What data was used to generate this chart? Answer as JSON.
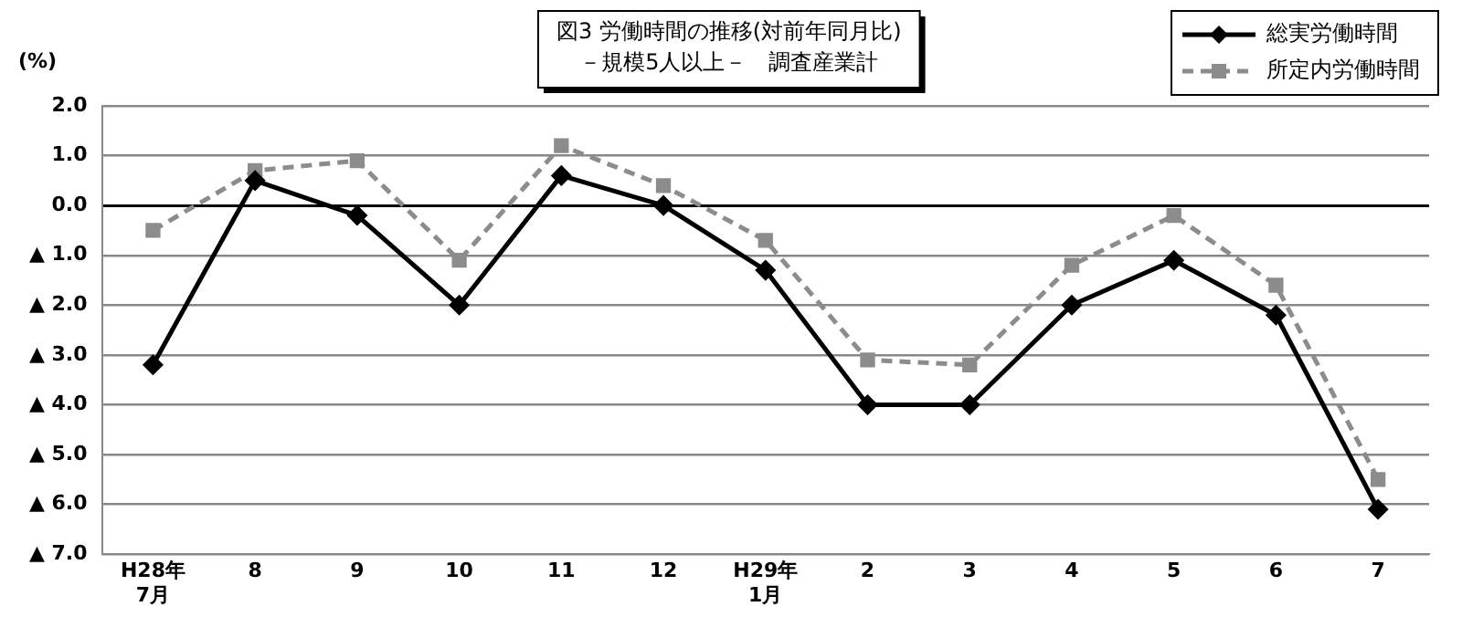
{
  "chart_data": {
    "type": "line",
    "title": "図3 労働時間の推移(対前年同月比)",
    "subtitle": "－規模5人以上－　調査産業計",
    "ylabel": "(%)",
    "categories": [
      "H28年\n7月",
      "8",
      "9",
      "10",
      "11",
      "12",
      "H29年\n1月",
      "2",
      "3",
      "4",
      "5",
      "6",
      "7"
    ],
    "series": [
      {
        "name": "総実労働時間",
        "color": "#000000",
        "marker": "diamond",
        "line_style": "solid",
        "values": [
          -3.2,
          0.5,
          -0.2,
          -2.0,
          0.6,
          0.0,
          -1.3,
          -4.0,
          -4.0,
          -2.0,
          -1.1,
          -2.2,
          -6.1
        ]
      },
      {
        "name": "所定内労働時間",
        "color": "#8c8c8c",
        "marker": "square",
        "line_style": "dashed",
        "values": [
          -0.5,
          0.7,
          0.9,
          -1.1,
          1.2,
          0.4,
          -0.7,
          -3.1,
          -3.2,
          -1.2,
          -0.2,
          -1.6,
          -5.5
        ]
      }
    ],
    "ylim": [
      -7,
      2
    ],
    "yticks": [
      {
        "value": 2,
        "label": "2.0"
      },
      {
        "value": 1,
        "label": "1.0"
      },
      {
        "value": 0,
        "label": "0.0"
      },
      {
        "value": -1,
        "label": "▲ 1.0"
      },
      {
        "value": -2,
        "label": "▲ 2.0"
      },
      {
        "value": -3,
        "label": "▲ 3.0"
      },
      {
        "value": -4,
        "label": "▲ 4.0"
      },
      {
        "value": -5,
        "label": "▲ 5.0"
      },
      {
        "value": -6,
        "label": "▲ 6.0"
      },
      {
        "value": -7,
        "label": "▲ 7.0"
      }
    ],
    "grid": "y",
    "legend": "top right"
  }
}
